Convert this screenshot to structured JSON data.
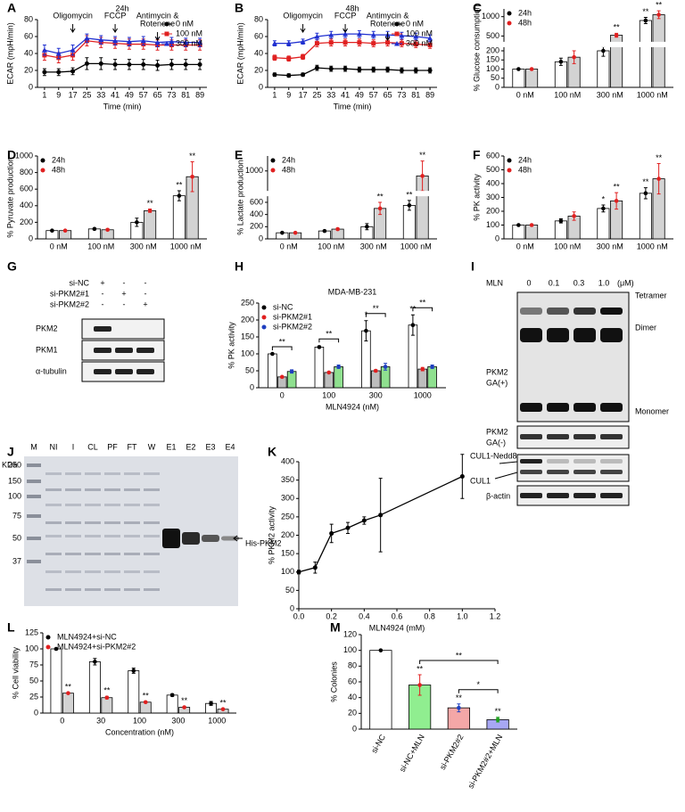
{
  "chart_data": [
    {
      "panel": "A",
      "type": "line",
      "title": "24h",
      "x_label": "Time (min)",
      "y_label": "ECAR (mpH/min)",
      "x": [
        1,
        9,
        17,
        25,
        33,
        41,
        49,
        57,
        65,
        73,
        81,
        89
      ],
      "xlim": [
        -3,
        93
      ],
      "xticks": [
        1,
        9,
        17,
        25,
        33,
        41,
        49,
        57,
        65,
        73,
        81,
        89
      ],
      "ylim": [
        0,
        80
      ],
      "yticks": [
        0,
        20,
        40,
        60,
        80
      ],
      "legend": "upper right",
      "annotations": [
        {
          "text": [
            "Oligomycin"
          ],
          "x": 17
        },
        {
          "text": [
            "FCCP"
          ],
          "x": 41
        },
        {
          "text": [
            "Antimycin &",
            "Rotenone"
          ],
          "x": 65
        }
      ],
      "series": [
        {
          "name": "0 nM",
          "color": "#000000",
          "marker": "circle",
          "values": [
            18,
            18,
            19,
            28,
            28,
            27,
            27,
            27,
            26,
            27,
            27,
            27
          ],
          "errors": [
            4,
            4,
            4,
            7,
            7,
            6,
            6,
            6,
            6,
            6,
            6,
            6
          ]
        },
        {
          "name": "100 nM",
          "color": "#e02020",
          "marker": "square",
          "values": [
            38,
            35,
            38,
            55,
            53,
            52,
            51,
            51,
            50,
            50,
            50,
            50
          ],
          "errors": [
            6,
            6,
            6,
            6,
            6,
            6,
            6,
            6,
            6,
            6,
            6,
            6
          ]
        },
        {
          "name": "300 nM",
          "color": "#2030d0",
          "marker": "triangle",
          "values": [
            44,
            40,
            44,
            58,
            56,
            55,
            54,
            55,
            53,
            54,
            53,
            53
          ],
          "errors": [
            6,
            6,
            6,
            5,
            5,
            5,
            5,
            5,
            5,
            5,
            5,
            5
          ]
        }
      ]
    },
    {
      "panel": "B",
      "type": "line",
      "title": "48h",
      "x_label": "Time (min)",
      "y_label": "ECAR (mpH/min)",
      "x": [
        1,
        9,
        17,
        25,
        33,
        41,
        49,
        57,
        65,
        73,
        81,
        89
      ],
      "xlim": [
        -3,
        93
      ],
      "xticks": [
        1,
        9,
        17,
        25,
        33,
        41,
        49,
        57,
        65,
        73,
        81,
        89
      ],
      "ylim": [
        0,
        80
      ],
      "yticks": [
        0,
        20,
        40,
        60,
        80
      ],
      "legend": "upper right",
      "annotations": [
        {
          "text": [
            "Oligomycin"
          ],
          "x": 17
        },
        {
          "text": [
            "FCCP"
          ],
          "x": 41
        },
        {
          "text": [
            "Antimycin &",
            "Rotenone"
          ],
          "x": 65
        }
      ],
      "series": [
        {
          "name": "0 nM",
          "color": "#000000",
          "marker": "circle",
          "values": [
            15,
            14,
            15,
            23,
            22,
            22,
            21,
            21,
            21,
            20,
            20,
            20
          ],
          "errors": [
            2,
            2,
            2,
            3,
            3,
            3,
            3,
            3,
            3,
            3,
            3,
            3
          ]
        },
        {
          "name": "100 nM",
          "color": "#e02020",
          "marker": "square",
          "values": [
            35,
            34,
            36,
            52,
            53,
            53,
            53,
            52,
            53,
            52,
            51,
            50
          ],
          "errors": [
            3,
            3,
            3,
            4,
            4,
            4,
            4,
            4,
            4,
            4,
            4,
            4
          ]
        },
        {
          "name": "300 nM",
          "color": "#2030d0",
          "marker": "triangle",
          "values": [
            52,
            52,
            54,
            60,
            62,
            63,
            63,
            62,
            62,
            61,
            60,
            58
          ],
          "errors": [
            3,
            3,
            3,
            4,
            4,
            4,
            4,
            4,
            4,
            4,
            4,
            4
          ]
        }
      ]
    },
    {
      "panel": "C",
      "type": "bar",
      "y_label": "% Glucose consumption",
      "categories": [
        "0 nM",
        "100 nM",
        "300 nM",
        "1000 nM"
      ],
      "ylim": [
        0,
        1200
      ],
      "ybreak": [
        220,
        350
      ],
      "yticks": [
        0,
        50,
        100,
        150,
        200,
        500,
        1000
      ],
      "legend": "upper left",
      "series": [
        {
          "name": "24h",
          "color": "#ffffff",
          "dot_color": "#000000",
          "values": [
            100,
            140,
            200,
            900
          ],
          "errors": [
            0,
            20,
            30,
            80
          ]
        },
        {
          "name": "48h",
          "color": "#d3d3d3",
          "dot_color": "#e02020",
          "values": [
            100,
            165,
            520,
            1050
          ],
          "errors": [
            0,
            35,
            50,
            100
          ]
        }
      ],
      "significance": [
        {
          "series": 1,
          "index": 2,
          "label": "**"
        },
        {
          "series": 0,
          "index": 3,
          "label": "**"
        },
        {
          "series": 1,
          "index": 3,
          "label": "**"
        }
      ]
    },
    {
      "panel": "D",
      "type": "bar",
      "y_label": "% Pyruvate production",
      "categories": [
        "0 nM",
        "100 nM",
        "300 nM",
        "1000 nM"
      ],
      "ylim": [
        0,
        1000
      ],
      "yticks": [
        0,
        200,
        400,
        600,
        800,
        1000
      ],
      "legend": "upper left",
      "series": [
        {
          "name": "24h",
          "color": "#ffffff",
          "dot_color": "#000000",
          "values": [
            100,
            120,
            200,
            520
          ],
          "errors": [
            0,
            10,
            50,
            60
          ]
        },
        {
          "name": "48h",
          "color": "#d3d3d3",
          "dot_color": "#e02020",
          "values": [
            100,
            110,
            340,
            750
          ],
          "errors": [
            0,
            10,
            20,
            180
          ]
        }
      ],
      "significance": [
        {
          "series": 1,
          "index": 2,
          "label": "**"
        },
        {
          "series": 0,
          "index": 3,
          "label": "**"
        },
        {
          "series": 1,
          "index": 3,
          "label": "**"
        }
      ]
    },
    {
      "panel": "E",
      "type": "bar",
      "y_label": "% Lactate production",
      "categories": [
        "0 nM",
        "100 nM",
        "300 nM",
        "1000 nM"
      ],
      "ylim": [
        0,
        1150
      ],
      "ybreak": [
        700,
        800
      ],
      "yticks": [
        0,
        200,
        400,
        600,
        1000
      ],
      "legend": "upper left",
      "series": [
        {
          "name": "24h",
          "color": "#ffffff",
          "dot_color": "#000000",
          "values": [
            100,
            130,
            200,
            550
          ],
          "errors": [
            0,
            10,
            50,
            80
          ]
        },
        {
          "name": "48h",
          "color": "#d3d3d3",
          "dot_color": "#e02020",
          "values": [
            100,
            160,
            500,
            950
          ],
          "errors": [
            0,
            15,
            100,
            150
          ]
        }
      ],
      "significance": [
        {
          "series": 1,
          "index": 2,
          "label": "**"
        },
        {
          "series": 0,
          "index": 3,
          "label": "**"
        },
        {
          "series": 1,
          "index": 3,
          "label": "**"
        }
      ]
    },
    {
      "panel": "F",
      "type": "bar",
      "y_label": "% PK activity",
      "categories": [
        "0 nM",
        "100 nM",
        "300 nM",
        "1000 nM"
      ],
      "ylim": [
        0,
        600
      ],
      "yticks": [
        0,
        100,
        200,
        300,
        400,
        500,
        600
      ],
      "legend": "upper left",
      "series": [
        {
          "name": "24h",
          "color": "#ffffff",
          "dot_color": "#000000",
          "values": [
            100,
            130,
            220,
            330
          ],
          "errors": [
            0,
            15,
            25,
            40
          ]
        },
        {
          "name": "48h",
          "color": "#d3d3d3",
          "dot_color": "#e02020",
          "values": [
            100,
            165,
            275,
            435
          ],
          "errors": [
            0,
            30,
            60,
            110
          ]
        }
      ],
      "significance": [
        {
          "series": 0,
          "index": 2,
          "label": "*"
        },
        {
          "series": 1,
          "index": 2,
          "label": "**"
        },
        {
          "series": 0,
          "index": 3,
          "label": "**"
        },
        {
          "series": 1,
          "index": 3,
          "label": "**"
        }
      ]
    },
    {
      "panel": "H",
      "type": "bar",
      "title": "MDA-MB-231",
      "x_label": "MLN4924 (nM)",
      "y_label": "% PK activity",
      "categories": [
        "0",
        "100",
        "300",
        "1000"
      ],
      "ylim": [
        0,
        250
      ],
      "yticks": [
        0,
        50,
        100,
        150,
        200,
        250
      ],
      "legend": "upper left",
      "series": [
        {
          "name": "si-NC",
          "color": "#ffffff",
          "dot_color": "#000000",
          "values": [
            100,
            120,
            168,
            185
          ],
          "errors": [
            0,
            3,
            30,
            30
          ]
        },
        {
          "name": "si-PKM2#1",
          "color": "#bdbdbd",
          "dot_color": "#e02020",
          "values": [
            32,
            45,
            50,
            55
          ],
          "errors": [
            2,
            2,
            3,
            5
          ]
        },
        {
          "name": "si-PKM2#2",
          "color": "#8fe08f",
          "dot_color": "#1f3fbf",
          "values": [
            48,
            62,
            62,
            62
          ],
          "errors": [
            5,
            5,
            10,
            5
          ]
        }
      ],
      "significance": [
        {
          "series": 0,
          "index": 2,
          "label": "*"
        },
        {
          "series": 0,
          "index": 3,
          "label": "**"
        }
      ],
      "brackets": [
        {
          "from": 0,
          "to": 0,
          "label": "**"
        },
        {
          "from": 1,
          "to": 1,
          "label": "**"
        },
        {
          "from": 2,
          "to": 2,
          "label": "**"
        },
        {
          "from": 3,
          "to": 3,
          "label": "**"
        }
      ]
    },
    {
      "panel": "K",
      "type": "line",
      "x_label": "MLN4924 (mM)",
      "y_label": "% PKM2 activity",
      "x": [
        0,
        0.1,
        0.2,
        0.3,
        0.4,
        0.5,
        1.0
      ],
      "xlim": [
        0,
        1.2
      ],
      "xticks": [
        {
          "value": 0,
          "label": "0.0"
        },
        0.2,
        0.4,
        0.6,
        0.8,
        {
          "value": 1,
          "label": "1.0"
        },
        1.2
      ],
      "ylim": [
        0,
        400
      ],
      "yticks": [
        0,
        50,
        100,
        150,
        200,
        250,
        300,
        350,
        400
      ],
      "series": [
        {
          "color": "#000000",
          "marker": "circle",
          "values": [
            100,
            112,
            205,
            220,
            240,
            255,
            360
          ],
          "errors": [
            5,
            15,
            25,
            15,
            10,
            100,
            60
          ]
        }
      ]
    },
    {
      "panel": "L",
      "type": "bar",
      "x_label": "Concentration (nM)",
      "y_label": "% Cell viability",
      "categories": [
        "0",
        "30",
        "100",
        "300",
        "1000"
      ],
      "ylim": [
        0,
        125
      ],
      "yticks": [
        0,
        25,
        50,
        75,
        100,
        125
      ],
      "legend": "upper left",
      "series": [
        {
          "name": "MLN4924+si-NC",
          "color": "#ffffff",
          "dot_color": "#000000",
          "values": [
            100,
            80,
            66,
            28,
            15
          ],
          "errors": [
            1,
            5,
            4,
            2,
            3
          ]
        },
        {
          "name": "MLN4924+si-PKM2#2",
          "color": "#d3d3d3",
          "dot_color": "#e02020",
          "values": [
            31,
            24,
            17,
            9,
            6
          ],
          "errors": [
            1,
            2,
            1,
            1,
            1
          ]
        }
      ],
      "significance": [
        {
          "series": 1,
          "index": 0,
          "label": "**"
        },
        {
          "series": 1,
          "index": 1,
          "label": "**"
        },
        {
          "series": 1,
          "index": 2,
          "label": "**"
        },
        {
          "series": 1,
          "index": 3,
          "label": "**"
        },
        {
          "series": 1,
          "index": 4,
          "label": "**"
        }
      ]
    },
    {
      "panel": "M",
      "type": "bar",
      "y_label": "% Colonies",
      "categories": [
        "si-NC",
        "si-NC+MLN",
        "si-PKM2#2",
        "si-PKM2#2+MLN"
      ],
      "xtick_rotation": -60,
      "ylim": [
        0,
        120
      ],
      "yticks": [
        0,
        20,
        40,
        60,
        80,
        100,
        120
      ],
      "series": [
        {
          "colors": [
            "#ffffff",
            "#90ee90",
            "#f4a7a7",
            "#a7a7f4"
          ],
          "dot_colors": [
            "#000000",
            "#e02020",
            "#2040c0",
            "#20a020"
          ],
          "values": [
            100,
            56,
            27,
            12
          ],
          "errors": [
            0,
            13,
            5,
            3
          ]
        }
      ],
      "significance": [
        {
          "series": 0,
          "index": 1,
          "label": "**"
        },
        {
          "series": 0,
          "index": 2,
          "label": "**"
        },
        {
          "series": 0,
          "index": 3,
          "label": "**"
        }
      ],
      "brackets": [
        {
          "from": 1,
          "to": 3,
          "label": "**"
        },
        {
          "from": 2,
          "to": 3,
          "label": "*"
        }
      ]
    }
  ],
  "blot_G": {
    "panel": "G",
    "conditions": [
      "si-NC",
      "si-PKM2#1",
      "si-PKM2#2"
    ],
    "signs": [
      [
        "+",
        "-",
        "-"
      ],
      [
        "-",
        "+",
        "-"
      ],
      [
        "-",
        "-",
        "+"
      ]
    ],
    "rows": [
      "PKM2",
      "PKM1",
      "α-tubulin"
    ]
  },
  "blot_I": {
    "panel": "I",
    "treatment": "MLN",
    "doses": [
      "0",
      "0.1",
      "0.3",
      "1.0"
    ],
    "unit": "(μM)",
    "band_labels": [
      "Tetramer",
      "Dimer",
      "Monomer"
    ],
    "rows": [
      [
        "PKM2",
        "GA(+)"
      ],
      [
        "PKM2",
        "GA(-)"
      ],
      [
        "CUL1-Nedd8"
      ],
      [
        "CUL1"
      ],
      [
        "β-actin"
      ]
    ]
  },
  "gel_J": {
    "panel": "J",
    "unit": "KDa",
    "lanes": [
      "M",
      "NI",
      "I",
      "CL",
      "PF",
      "FT",
      "W",
      "E1",
      "E2",
      "E3",
      "E4"
    ],
    "markers": [
      250,
      150,
      100,
      75,
      50,
      37
    ],
    "band_label": "His-PKM2"
  }
}
